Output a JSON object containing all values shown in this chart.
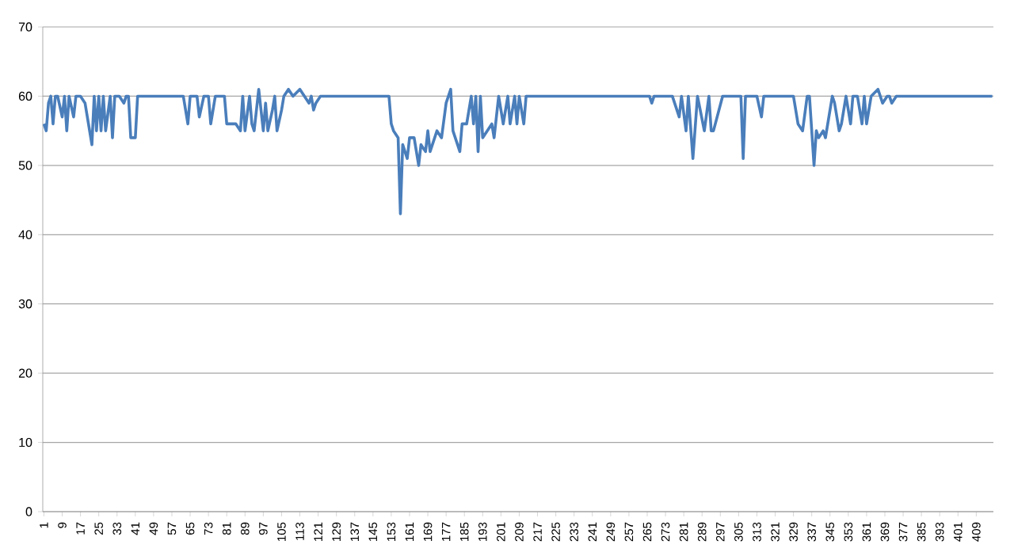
{
  "chart_data": {
    "type": "line",
    "color": "#4a7ebb",
    "marker": "none",
    "line_style": "solid",
    "grid": "y",
    "xlim": [
      0.5,
      416.5
    ],
    "xticks": [
      1,
      9,
      17,
      25,
      33,
      41,
      49,
      57,
      65,
      73,
      81,
      89,
      97,
      105,
      113,
      121,
      129,
      137,
      145,
      153,
      161,
      169,
      177,
      185,
      193,
      201,
      209,
      217,
      225,
      233,
      241,
      249,
      257,
      265,
      273,
      281,
      289,
      297,
      305,
      313,
      321,
      329,
      337,
      345,
      353,
      361,
      369,
      377,
      385,
      393,
      401,
      409
    ],
    "ylim": [
      0,
      70
    ],
    "yticks": [
      0,
      10,
      20,
      30,
      40,
      50,
      60,
      70
    ],
    "x": [
      1,
      2,
      3,
      4,
      5,
      6,
      7,
      9,
      10,
      11,
      12,
      14,
      15,
      17,
      19,
      22,
      23,
      24,
      25,
      26,
      27,
      28,
      30,
      31,
      32,
      34,
      36,
      37,
      38,
      39,
      41,
      42,
      62,
      64,
      65,
      68,
      69,
      71,
      73,
      74,
      76,
      80,
      81,
      85,
      87,
      88,
      89,
      91,
      92,
      93,
      95,
      97,
      98,
      99,
      101,
      102,
      103,
      105,
      106,
      108,
      110,
      113,
      115,
      117,
      118,
      119,
      120,
      122,
      152,
      153,
      154,
      156,
      157,
      158,
      160,
      161,
      163,
      165,
      166,
      168,
      169,
      170,
      172,
      173,
      175,
      177,
      179,
      180,
      183,
      184,
      186,
      188,
      189,
      190,
      191,
      192,
      193,
      195,
      197,
      198,
      200,
      202,
      204,
      205,
      207,
      208,
      209,
      211,
      212,
      266,
      267,
      268,
      276,
      279,
      280,
      282,
      283,
      285,
      287,
      290,
      292,
      293,
      294,
      298,
      306,
      307,
      308,
      311,
      313,
      315,
      316,
      318,
      328,
      329,
      331,
      333,
      335,
      336,
      338,
      339,
      340,
      342,
      343,
      345,
      346,
      347,
      349,
      350,
      352,
      354,
      355,
      357,
      359,
      360,
      361,
      363,
      366,
      368,
      370,
      371,
      372,
      374,
      385,
      416
    ],
    "values": [
      56,
      55,
      59,
      60,
      56,
      60,
      60,
      57,
      60,
      55,
      60,
      57,
      60,
      60,
      59,
      53,
      60,
      55,
      60,
      55,
      60,
      55,
      60,
      54,
      60,
      60,
      59,
      60,
      60,
      54,
      54,
      60,
      60,
      56,
      60,
      60,
      57,
      60,
      60,
      56,
      60,
      60,
      56,
      56,
      55,
      60,
      55,
      60,
      56,
      55,
      61,
      55,
      59,
      55,
      58,
      60,
      55,
      58,
      60,
      61,
      60,
      61,
      60,
      59,
      60,
      58,
      59,
      60,
      60,
      56,
      55,
      54,
      43,
      53,
      51,
      54,
      54,
      50,
      53,
      52,
      55,
      52,
      54,
      55,
      54,
      59,
      61,
      55,
      52,
      56,
      56,
      60,
      56,
      60,
      52,
      60,
      54,
      55,
      56,
      54,
      60,
      56,
      60,
      56,
      60,
      56,
      60,
      56,
      60,
      60,
      59,
      60,
      60,
      57,
      60,
      55,
      60,
      51,
      60,
      55,
      60,
      55,
      55,
      60,
      60,
      51,
      60,
      60,
      60,
      57,
      60,
      60,
      60,
      60,
      56,
      55,
      60,
      60,
      50,
      55,
      54,
      55,
      54,
      58,
      60,
      59,
      55,
      56,
      60,
      56,
      60,
      60,
      56,
      60,
      56,
      60,
      61,
      59,
      60,
      60,
      59,
      60,
      60,
      60
    ]
  }
}
